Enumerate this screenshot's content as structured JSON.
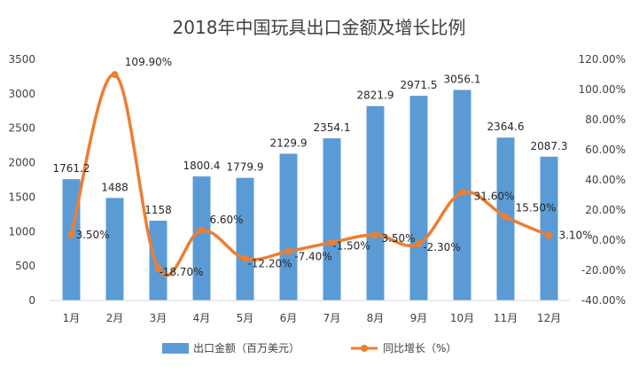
{
  "chart_data": {
    "type": "bar",
    "title": "2018年中国玩具出口金额及增长比例",
    "categories": [
      "1月",
      "2月",
      "3月",
      "4月",
      "5月",
      "6月",
      "7月",
      "8月",
      "9月",
      "10月",
      "11月",
      "12月"
    ],
    "series": [
      {
        "name": "出口金额（百万美元）",
        "type": "bar",
        "axis": "left",
        "values": [
          1761.2,
          1488,
          1158,
          1800.4,
          1779.9,
          2129.9,
          2354.1,
          2821.9,
          2971.5,
          3056.1,
          2364.6,
          2087.3
        ],
        "labels": [
          "1761.2",
          "1488",
          "1158",
          "1800.4",
          "1779.9",
          "2129.9",
          "2354.1",
          "2821.9",
          "2971.5",
          "3056.1",
          "2364.6",
          "2087.3"
        ],
        "color": "#5B9BD5"
      },
      {
        "name": "同比增长（%）",
        "type": "line",
        "axis": "right",
        "values": [
          3.5,
          109.9,
          -18.7,
          6.6,
          -12.2,
          -7.4,
          -1.5,
          3.5,
          -2.3,
          31.6,
          15.5,
          3.1
        ],
        "labels": [
          "3.50%",
          "109.90%",
          "-18.70%",
          "6.60%",
          "-12.20%",
          "-7.40%",
          "-1.50%",
          "3.50%",
          "-2.30%",
          "31.60%",
          "15.50%",
          "3.10%"
        ],
        "color": "#ED7D31"
      }
    ],
    "left_axis": {
      "ylim": [
        0,
        3500
      ],
      "ticks": [
        0,
        500,
        1000,
        1500,
        2000,
        2500,
        3000,
        3500
      ],
      "tick_labels": [
        "0",
        "500",
        "1000",
        "1500",
        "2000",
        "2500",
        "3000",
        "3500"
      ]
    },
    "right_axis": {
      "ylim": [
        -40,
        120
      ],
      "ticks": [
        -40,
        -20,
        0,
        20,
        40,
        60,
        80,
        100,
        120
      ],
      "tick_labels": [
        "-40.00%",
        "-20.00%",
        "0.00%",
        "20.00%",
        "40.00%",
        "60.00%",
        "80.00%",
        "100.00%",
        "120.00%"
      ]
    },
    "legend_position": "bottom",
    "grid": false
  }
}
